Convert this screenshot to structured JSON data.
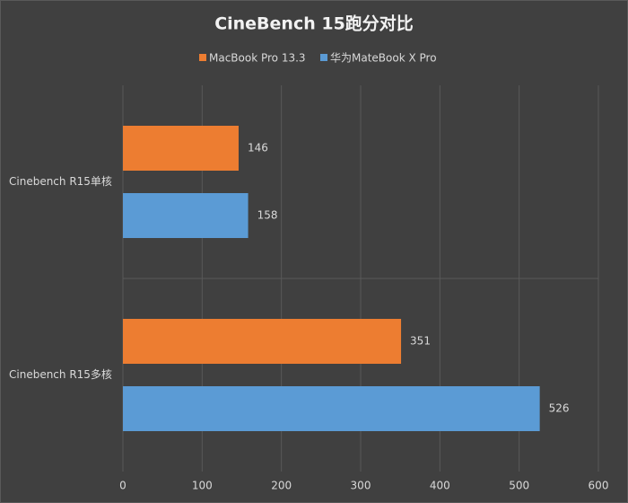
{
  "chart_data": {
    "type": "hbar",
    "title": "CineBench 15跑分对比",
    "categories": [
      "Cinebench R15单核",
      "Cinebench R15多核"
    ],
    "series": [
      {
        "name": "MacBook Pro 13.3",
        "color": "#ed7d31",
        "values": [
          146,
          351
        ]
      },
      {
        "name": "华为MateBook X Pro",
        "color": "#5b9bd5",
        "values": [
          158,
          526
        ]
      }
    ],
    "xlim": [
      0,
      600
    ],
    "xticks": [
      0,
      100,
      200,
      300,
      400,
      500,
      600
    ],
    "grid": true
  }
}
